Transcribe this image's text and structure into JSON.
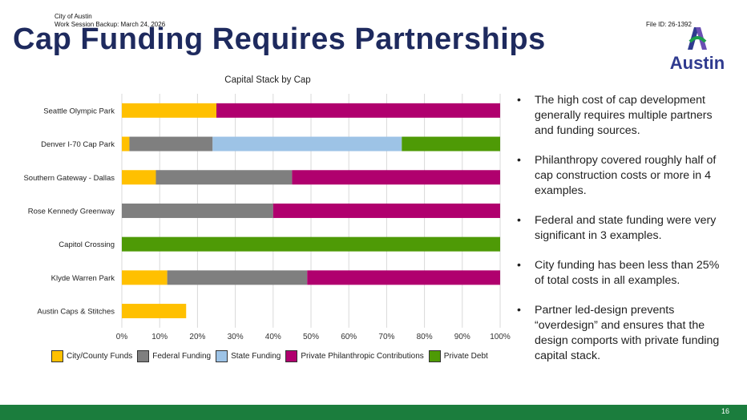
{
  "header": {
    "org": "City of Austin",
    "session": "Work Session Backup: March 24, 2026",
    "file_id": "File ID: 26-1392",
    "title": "Cap Funding Requires Partnerships"
  },
  "logo": {
    "text": "Austin"
  },
  "chart_data": {
    "type": "bar",
    "orientation": "horizontal",
    "stacked": "percent",
    "title": "Capital Stack by Cap",
    "categories": [
      "Seattle Olympic Park",
      "Denver I-70 Cap Park",
      "Southern Gateway - Dallas",
      "Rose Kennedy Greenway",
      "Capitol Crossing",
      "Klyde Warren Park",
      "Austin Caps & Stitches"
    ],
    "series": [
      {
        "name": "City/County Funds",
        "color": "#FFC000",
        "values": [
          25,
          2,
          9,
          0,
          0,
          12,
          17
        ]
      },
      {
        "name": "Federal Funding",
        "color": "#7F7F7F",
        "values": [
          0,
          22,
          36,
          40,
          0,
          37,
          0
        ]
      },
      {
        "name": "State Funding",
        "color": "#9DC3E6",
        "values": [
          0,
          50,
          0,
          0,
          0,
          0,
          0
        ]
      },
      {
        "name": "Private Philanthropic Contributions",
        "color": "#B0006E",
        "values": [
          75,
          0,
          55,
          60,
          0,
          51,
          0
        ]
      },
      {
        "name": "Private Debt",
        "color": "#4E9A06",
        "values": [
          0,
          26,
          0,
          0,
          100,
          0,
          0
        ]
      }
    ],
    "xlim": [
      0,
      100
    ],
    "xticks": [
      "0%",
      "10%",
      "20%",
      "30%",
      "40%",
      "50%",
      "60%",
      "70%",
      "80%",
      "90%",
      "100%"
    ],
    "grid": true,
    "legend": "bottom"
  },
  "bullets": [
    "The high cost of cap development generally requires multiple partners and funding sources.",
    "Philanthropy covered roughly half of cap construction costs or more in 4 examples.",
    "Federal and state funding were very significant in 3 examples.",
    "City funding has been less than 25% of total costs in all examples.",
    "Partner led-design prevents “overdesign” and ensures that the design comports with private funding capital stack."
  ],
  "footer": {
    "page": "16",
    "color": "#1b7d3d"
  }
}
